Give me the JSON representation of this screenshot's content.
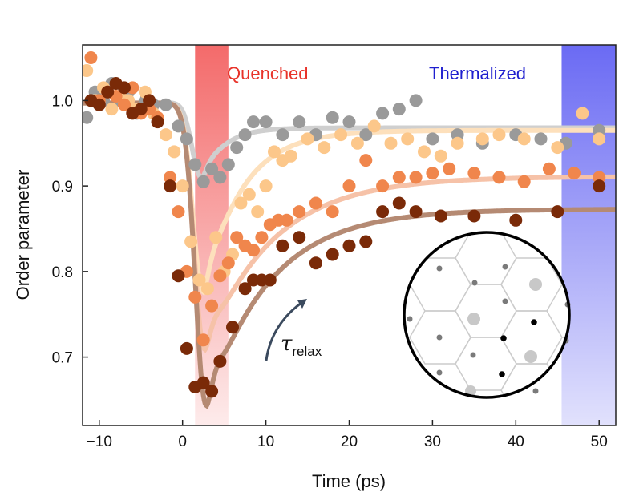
{
  "chart_data": {
    "type": "scatter",
    "title": "",
    "xlabel": "Time (ps)",
    "ylabel": "Order parameter",
    "xlim": [
      -12,
      52
    ],
    "ylim": [
      0.62,
      1.065
    ],
    "xticks": [
      -10,
      0,
      10,
      20,
      30,
      40,
      50
    ],
    "xtick_labels": [
      "−10",
      "0",
      "10",
      "20",
      "30",
      "40",
      "50"
    ],
    "yticks": [
      0.7,
      0.8,
      0.9,
      1.0
    ],
    "ytick_labels": [
      "0.7",
      "0.8",
      "0.9",
      "1.0"
    ],
    "regions": [
      {
        "name": "Quenched",
        "label": "Quenched",
        "x_range": [
          1.5,
          5.5
        ],
        "color": "#f04848",
        "label_color": "#e8332a"
      },
      {
        "name": "Thermalized",
        "label": "Thermalized",
        "x_range": [
          45.5,
          52
        ],
        "color": "#5858f0",
        "label_color": "#1f1fcf"
      }
    ],
    "annotation": {
      "symbol": "τ",
      "subscript": "relax"
    },
    "inset": {
      "shape": "circle",
      "content": "hexagonal lattice"
    },
    "series": [
      {
        "name": "gray",
        "color": "#9a9a9a",
        "fit_color": "#cfcfcf",
        "points": [
          [
            -11.5,
            0.98
          ],
          [
            -10.5,
            1.01
          ],
          [
            -9.5,
            1.0
          ],
          [
            -8.5,
            1.02
          ],
          [
            -7.5,
            1.0
          ],
          [
            -6.5,
            1.01
          ],
          [
            -5.5,
            0.985
          ],
          [
            -4.5,
            1.0
          ],
          [
            -3.5,
            0.995
          ],
          [
            -2,
            0.995
          ],
          [
            -0.5,
            0.97
          ],
          [
            0.5,
            0.955
          ],
          [
            1.5,
            0.925
          ],
          [
            2.5,
            0.905
          ],
          [
            3.5,
            0.92
          ],
          [
            4.5,
            0.91
          ],
          [
            5.5,
            0.925
          ],
          [
            6.5,
            0.945
          ],
          [
            7.5,
            0.96
          ],
          [
            8.5,
            0.975
          ],
          [
            10,
            0.975
          ],
          [
            12,
            0.96
          ],
          [
            14,
            0.975
          ],
          [
            16,
            0.96
          ],
          [
            18,
            0.98
          ],
          [
            20,
            0.975
          ],
          [
            22,
            0.96
          ],
          [
            24,
            0.985
          ],
          [
            26,
            0.99
          ],
          [
            28,
            1.0
          ],
          [
            30,
            0.955
          ],
          [
            33,
            0.96
          ],
          [
            36,
            0.95
          ],
          [
            40,
            0.96
          ],
          [
            43,
            0.955
          ],
          [
            46,
            0.95
          ],
          [
            50,
            0.965
          ]
        ],
        "fit": {
          "baseline": 0.9975,
          "final": 0.968,
          "t0": -1.2,
          "rise": 1.1,
          "drop": 0.092,
          "center": 2.3,
          "width": 1.6,
          "tau": 2.5
        }
      },
      {
        "name": "light orange",
        "color": "#fcc78a",
        "fit_color": "#fde0bc",
        "points": [
          [
            -11.5,
            1.035
          ],
          [
            -10.5,
            1.0
          ],
          [
            -9.5,
            1.015
          ],
          [
            -8.5,
            0.99
          ],
          [
            -7.5,
            1.005
          ],
          [
            -6.5,
            1.0
          ],
          [
            -5.5,
            0.99
          ],
          [
            -4.5,
            1.01
          ],
          [
            -3.5,
            0.985
          ],
          [
            -2,
            0.96
          ],
          [
            -1,
            0.94
          ],
          [
            0,
            0.9
          ],
          [
            1,
            0.835
          ],
          [
            2,
            0.79
          ],
          [
            3,
            0.78
          ],
          [
            4,
            0.84
          ],
          [
            5,
            0.8
          ],
          [
            6,
            0.82
          ],
          [
            7,
            0.88
          ],
          [
            8,
            0.89
          ],
          [
            9,
            0.87
          ],
          [
            10,
            0.9
          ],
          [
            11,
            0.94
          ],
          [
            12,
            0.93
          ],
          [
            13,
            0.935
          ],
          [
            15,
            0.955
          ],
          [
            17,
            0.945
          ],
          [
            19,
            0.96
          ],
          [
            21,
            0.95
          ],
          [
            23,
            0.97
          ],
          [
            25,
            0.95
          ],
          [
            27,
            0.955
          ],
          [
            29,
            0.94
          ],
          [
            31,
            0.935
          ],
          [
            33,
            0.95
          ],
          [
            36,
            0.955
          ],
          [
            38,
            0.96
          ],
          [
            41,
            0.955
          ],
          [
            45,
            0.945
          ],
          [
            48,
            0.985
          ],
          [
            50,
            0.955
          ]
        ],
        "fit": {
          "baseline": 0.997,
          "final": 0.965,
          "t0": -1.5,
          "rise": 1.0,
          "drop": 0.225,
          "center": 2.5,
          "width": 1.7,
          "tau": 4.5
        }
      },
      {
        "name": "orange",
        "color": "#f0864c",
        "fit_color": "#f6c2a8",
        "points": [
          [
            -11,
            1.05
          ],
          [
            -10,
            1.0
          ],
          [
            -9,
            1.01
          ],
          [
            -8,
            1.005
          ],
          [
            -7,
            0.995
          ],
          [
            -6,
            1.015
          ],
          [
            -5,
            0.985
          ],
          [
            -4,
            0.99
          ],
          [
            -3,
            0.98
          ],
          [
            -1.5,
            0.91
          ],
          [
            -0.5,
            0.87
          ],
          [
            0.5,
            0.8
          ],
          [
            1.5,
            0.77
          ],
          [
            2.5,
            0.72
          ],
          [
            3.5,
            0.76
          ],
          [
            4.5,
            0.795
          ],
          [
            5.5,
            0.81
          ],
          [
            6.5,
            0.84
          ],
          [
            7.5,
            0.83
          ],
          [
            8.5,
            0.825
          ],
          [
            9.5,
            0.84
          ],
          [
            10.5,
            0.855
          ],
          [
            11.5,
            0.86
          ],
          [
            12.5,
            0.86
          ],
          [
            14,
            0.87
          ],
          [
            16,
            0.88
          ],
          [
            18,
            0.87
          ],
          [
            20,
            0.9
          ],
          [
            22,
            0.93
          ],
          [
            24,
            0.9
          ],
          [
            26,
            0.91
          ],
          [
            28,
            0.91
          ],
          [
            30,
            0.915
          ],
          [
            32,
            0.92
          ],
          [
            35,
            0.915
          ],
          [
            38,
            0.91
          ],
          [
            41,
            0.905
          ],
          [
            44,
            0.92
          ],
          [
            47,
            0.915
          ],
          [
            50,
            0.91
          ]
        ],
        "fit": {
          "baseline": 0.997,
          "final": 0.911,
          "t0": -1.8,
          "rise": 0.9,
          "drop": 0.29,
          "center": 2.7,
          "width": 1.75,
          "tau": 8.0
        }
      },
      {
        "name": "dark brown",
        "color": "#7a2a08",
        "fit_color": "#b58a73",
        "points": [
          [
            -11,
            1.0
          ],
          [
            -10,
            0.995
          ],
          [
            -9,
            1.01
          ],
          [
            -8,
            1.02
          ],
          [
            -7,
            1.015
          ],
          [
            -6,
            0.985
          ],
          [
            -5,
            0.99
          ],
          [
            -4,
            1.0
          ],
          [
            -3,
            0.975
          ],
          [
            -1.5,
            0.9
          ],
          [
            -0.5,
            0.795
          ],
          [
            0.5,
            0.71
          ],
          [
            1.5,
            0.665
          ],
          [
            2.5,
            0.67
          ],
          [
            3.5,
            0.66
          ],
          [
            4.5,
            0.695
          ],
          [
            6,
            0.735
          ],
          [
            7.5,
            0.78
          ],
          [
            8.5,
            0.79
          ],
          [
            9.5,
            0.79
          ],
          [
            10.5,
            0.79
          ],
          [
            12,
            0.83
          ],
          [
            14,
            0.84
          ],
          [
            16,
            0.81
          ],
          [
            18,
            0.82
          ],
          [
            20,
            0.83
          ],
          [
            22,
            0.835
          ],
          [
            24,
            0.87
          ],
          [
            26,
            0.88
          ],
          [
            28,
            0.87
          ],
          [
            31,
            0.865
          ],
          [
            35,
            0.865
          ],
          [
            40,
            0.86
          ],
          [
            45,
            0.87
          ],
          [
            50,
            0.9
          ]
        ],
        "fit": {
          "baseline": 0.997,
          "final": 0.873,
          "t0": -2.0,
          "rise": 0.85,
          "drop": 0.355,
          "center": 2.9,
          "width": 1.8,
          "tau": 7.5
        }
      }
    ]
  }
}
